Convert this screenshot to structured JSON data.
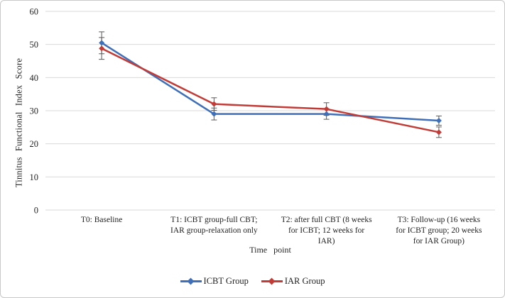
{
  "chart_data": {
    "type": "line",
    "title": "",
    "xlabel": "Time point",
    "ylabel": "Tinnitus Functional Index Score",
    "ylim": [
      0,
      60
    ],
    "yticks": [
      0,
      10,
      20,
      30,
      40,
      50,
      60
    ],
    "grid": true,
    "legend_position": "bottom",
    "gridline_color": "#d9d9d9",
    "error_bar_color": "#595959",
    "text_color": "#1f1f1f",
    "categories": [
      {
        "label": "T0: Baseline",
        "lines": [
          "T0: Baseline"
        ]
      },
      {
        "label": "T1: ICBT group-full CBT; IAR group-relaxation only",
        "lines": [
          "T1: ICBT group-full CBT;",
          "IAR group-relaxation only"
        ]
      },
      {
        "label": "T2: after full CBT (8 weeks for ICBT; 12 weeks for IAR)",
        "lines": [
          "T2: after full CBT (8 weeks",
          "for ICBT; 12 weeks for",
          "IAR)"
        ]
      },
      {
        "label": "T3: Follow-up (16 weeks for ICBT group; 20 weeks for IAR Group)",
        "lines": [
          "T3: Follow-up (16 weeks",
          "for ICBT group; 20 weeks",
          "for IAR Group)"
        ]
      }
    ],
    "series": [
      {
        "name": "ICBT Group",
        "color": "#3e6fb8",
        "marker": "diamond",
        "values": [
          50.5,
          29,
          29,
          27
        ],
        "errors": [
          3.3,
          1.8,
          1.6,
          1.4
        ]
      },
      {
        "name": "IAR Group",
        "color": "#c13c37",
        "marker": "diamond",
        "values": [
          48.8,
          32,
          30.5,
          23.5
        ],
        "errors": [
          3.3,
          1.9,
          1.9,
          1.6
        ]
      }
    ]
  }
}
